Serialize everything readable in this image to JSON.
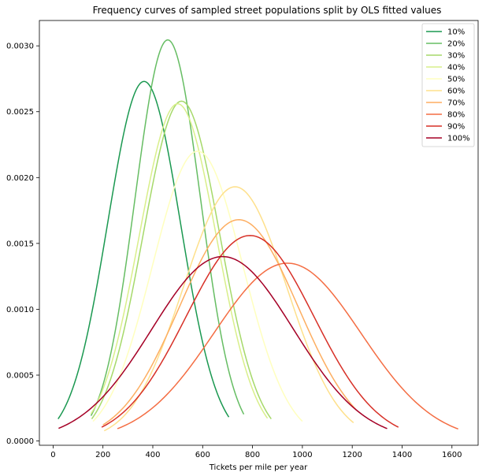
{
  "chart_data": {
    "type": "line",
    "title": "Frequency curves of sampled street populations split by OLS fitted values",
    "xlabel": "Tickets per mile per year",
    "ylabel": "",
    "xlim": [
      -55,
      1705
    ],
    "ylim": [
      -3.25e-05,
      0.0031925
    ],
    "xticks": [
      0,
      200,
      400,
      600,
      800,
      1000,
      1200,
      1400,
      1600
    ],
    "yticks": [
      0.0,
      0.0005,
      0.001,
      0.0015,
      0.002,
      0.0025,
      0.003
    ],
    "ytick_labels": [
      "0.0000",
      "0.0005",
      "0.0010",
      "0.0015",
      "0.0020",
      "0.0025",
      "0.0030"
    ],
    "grid": false,
    "legend": "top-right",
    "curve": "gaussian",
    "series": [
      {
        "name": "10%",
        "color": "#1a9850",
        "mean": 365,
        "sd": 146,
        "peak": 0.00273,
        "x_range": [
          20,
          705
        ]
      },
      {
        "name": "20%",
        "color": "#66bd63",
        "mean": 460,
        "sd": 131,
        "peak": 0.003045,
        "x_range": [
          152,
          765
        ]
      },
      {
        "name": "30%",
        "color": "#a6d96a",
        "mean": 515,
        "sd": 154,
        "peak": 0.00258,
        "x_range": [
          155,
          875
        ]
      },
      {
        "name": "40%",
        "color": "#d9ef8b",
        "mean": 500,
        "sd": 155,
        "peak": 0.00256,
        "x_range": [
          152,
          860
        ]
      },
      {
        "name": "50%",
        "color": "#ffffbf",
        "mean": 580,
        "sd": 181,
        "peak": 0.0022,
        "x_range": [
          160,
          1000
        ]
      },
      {
        "name": "60%",
        "color": "#fee08b",
        "mean": 730,
        "sd": 207,
        "peak": 0.00193,
        "x_range": [
          205,
          1205
        ]
      },
      {
        "name": "70%",
        "color": "#fdae61",
        "mean": 745,
        "sd": 238,
        "peak": 0.00168,
        "x_range": [
          200,
          1215
        ]
      },
      {
        "name": "80%",
        "color": "#f46d43",
        "mean": 940,
        "sd": 295,
        "peak": 0.00135,
        "x_range": [
          258,
          1625
        ]
      },
      {
        "name": "90%",
        "color": "#d73027",
        "mean": 790,
        "sd": 256,
        "peak": 0.00156,
        "x_range": [
          195,
          1385
        ]
      },
      {
        "name": "100%",
        "color": "#a50026",
        "mean": 680,
        "sd": 284,
        "peak": 0.0014,
        "x_range": [
          22,
          1340
        ]
      }
    ]
  }
}
